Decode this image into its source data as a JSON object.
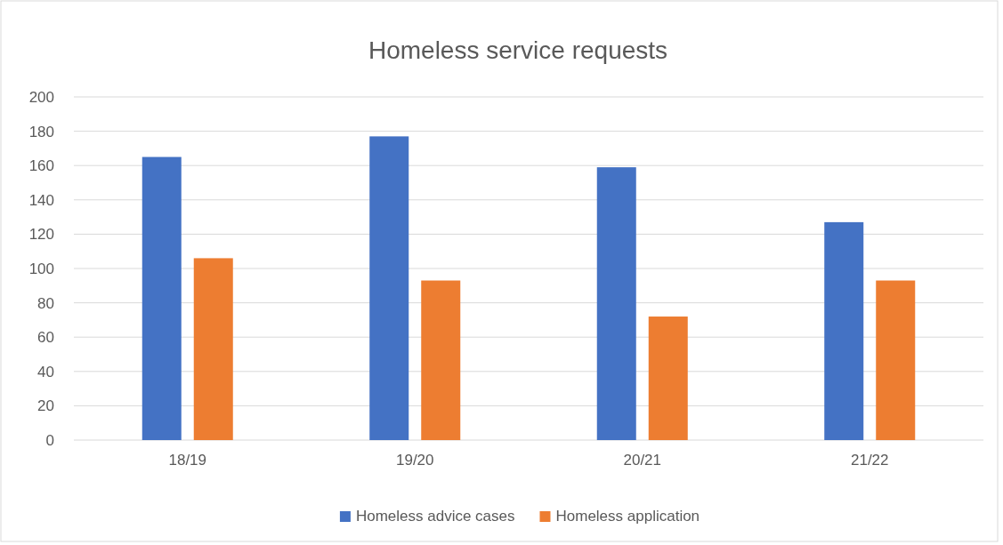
{
  "chart_data": {
    "type": "bar",
    "title": "Homeless service requests",
    "categories": [
      "18/19",
      "19/20",
      "20/21",
      "21/22"
    ],
    "series": [
      {
        "name": "Homeless advice cases",
        "color": "#4472c4",
        "values": [
          165,
          177,
          159,
          127
        ]
      },
      {
        "name": "Homeless application",
        "color": "#ed7d31",
        "values": [
          106,
          93,
          72,
          93
        ]
      }
    ],
    "ylim": [
      0,
      200
    ],
    "yticks": [
      0,
      20,
      40,
      60,
      80,
      100,
      120,
      140,
      160,
      180,
      200
    ],
    "grid": "y",
    "legend": "bottom"
  }
}
